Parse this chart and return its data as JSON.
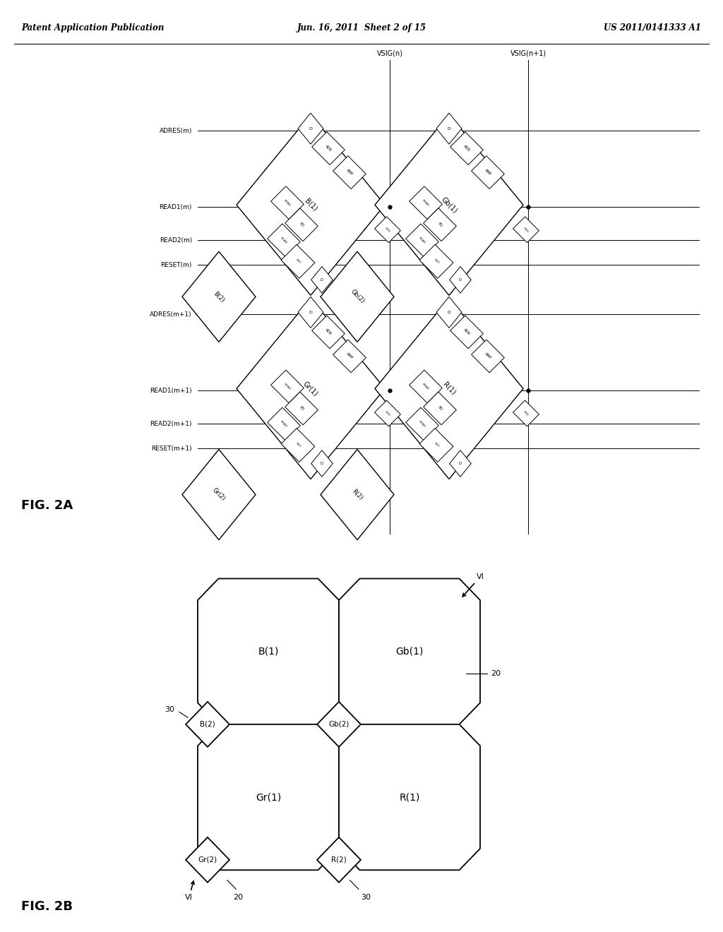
{
  "header_left": "Patent Application Publication",
  "header_mid": "Jun. 16, 2011  Sheet 2 of 15",
  "header_right": "US 2011/0141333 A1",
  "fig2a_label": "FIG. 2A",
  "fig2b_label": "FIG. 2B",
  "background": "#ffffff",
  "line_color": "#000000"
}
